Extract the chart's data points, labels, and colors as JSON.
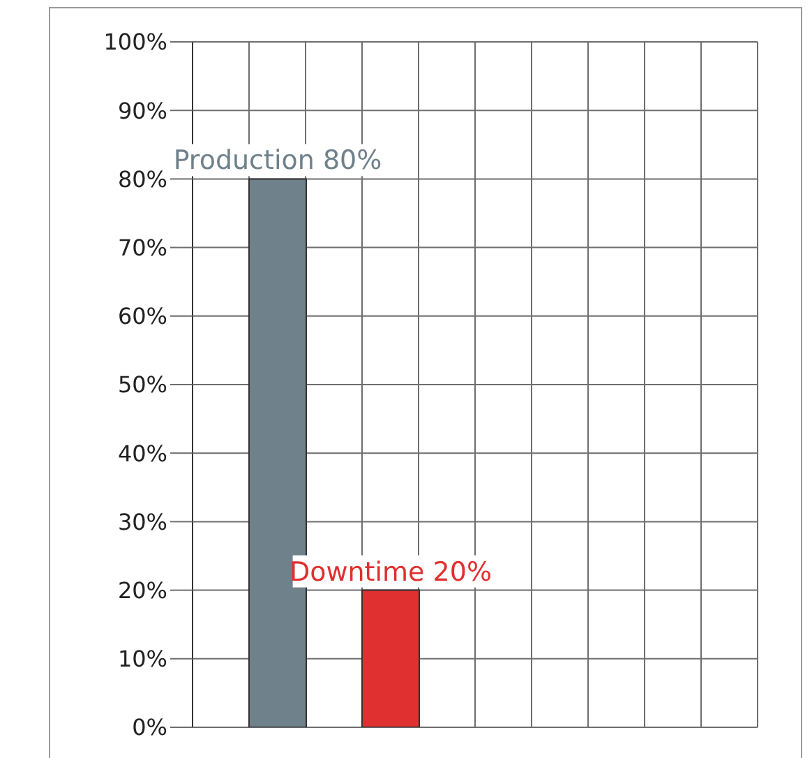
{
  "chart_data": {
    "type": "bar",
    "categories": [
      null,
      null,
      null,
      null,
      null,
      null,
      null,
      null,
      null,
      null
    ],
    "values": [
      null,
      80,
      null,
      20,
      null,
      null,
      null,
      null,
      null,
      null
    ],
    "colors": [
      null,
      "#6f818b",
      null,
      "#e03030",
      null,
      null,
      null,
      null,
      null,
      null
    ],
    "value_labels": [
      null,
      "Production 80%",
      null,
      "Downtime 20%",
      null,
      null,
      null,
      null,
      null,
      null
    ],
    "ylim": [
      0,
      100
    ],
    "yticks": [
      {
        "value": 0,
        "label": "0%"
      },
      {
        "value": 10,
        "label": "10%"
      },
      {
        "value": 20,
        "label": "20%"
      },
      {
        "value": 30,
        "label": "30%"
      },
      {
        "value": 40,
        "label": "40%"
      },
      {
        "value": 50,
        "label": "50%"
      },
      {
        "value": 60,
        "label": "60%"
      },
      {
        "value": 70,
        "label": "70%"
      },
      {
        "value": 80,
        "label": "80%"
      },
      {
        "value": 90,
        "label": "90%"
      },
      {
        "value": 100,
        "label": "100%"
      }
    ],
    "grid": true,
    "tick_labels": "y"
  }
}
